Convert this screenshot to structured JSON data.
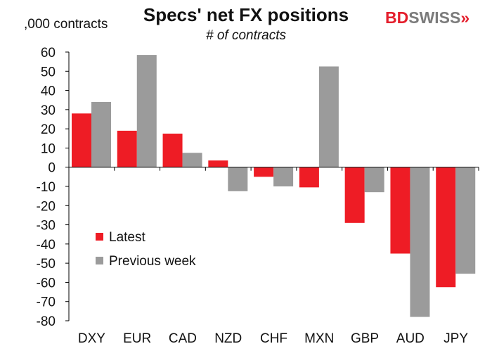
{
  "chart_data": {
    "type": "bar",
    "title": "Specs' net FX positions",
    "subtitle": "# of contracts",
    "ylabel": ",000 contracts",
    "ylim": [
      -80,
      60
    ],
    "yticks": [
      60,
      50,
      40,
      30,
      20,
      10,
      0,
      -10,
      -20,
      -30,
      -40,
      -50,
      -60,
      -70,
      -80
    ],
    "categories": [
      "DXY",
      "EUR",
      "CAD",
      "NZD",
      "CHF",
      "MXN",
      "GBP",
      "AUD",
      "JPY"
    ],
    "series": [
      {
        "name": "Latest",
        "color": "#ee1c25",
        "values": [
          28,
          19,
          17.5,
          3.5,
          -5,
          -10.5,
          -29,
          -45,
          -62.5
        ]
      },
      {
        "name": "Previous week",
        "color": "#9b9b9b",
        "values": [
          34,
          58.5,
          7.5,
          -12.5,
          -10,
          52.5,
          -13,
          -78,
          -55.5
        ]
      }
    ]
  },
  "brand": {
    "part1": "BD",
    "part2": "SWISS",
    "arrow": "»"
  }
}
